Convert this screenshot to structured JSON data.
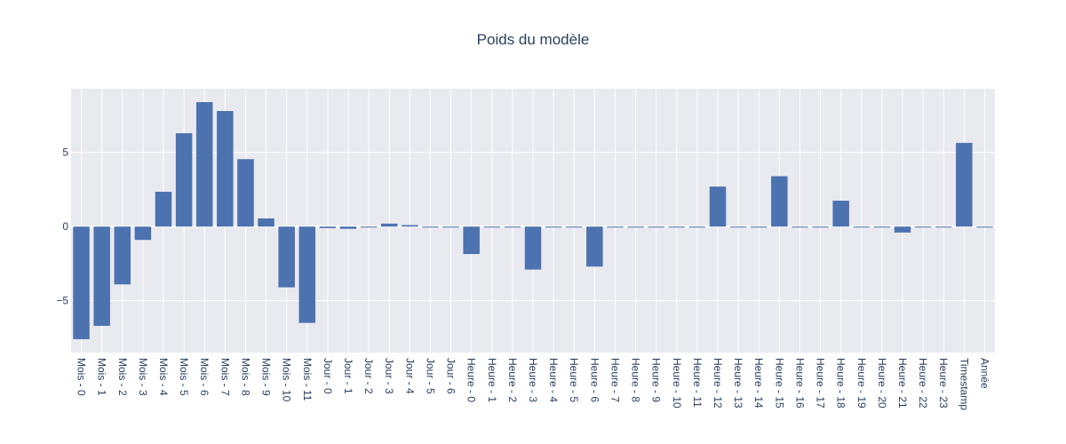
{
  "chart_data": {
    "type": "bar",
    "title": "Poids du modèle",
    "xlabel": "",
    "ylabel": "",
    "ylim": [
      -8.5,
      9.3
    ],
    "yticks": [
      -5,
      0,
      5
    ],
    "grid": true,
    "colors": {
      "bar": "#4c72b0",
      "plot_bg": "#e9e9f0",
      "grid": "#ffffff",
      "text": "#2a3f5f"
    },
    "categories": [
      "Mois - 0",
      "Mois - 1",
      "Mois - 2",
      "Mois - 3",
      "Mois - 4",
      "Mois - 5",
      "Mois - 6",
      "Mois - 7",
      "Mois - 8",
      "Mois - 9",
      "Mois - 10",
      "Mois - 11",
      "Jour - 0",
      "Jour - 1",
      "Jour - 2",
      "Jour - 3",
      "Jour - 4",
      "Jour - 5",
      "Jour - 6",
      "Heure - 0",
      "Heure - 1",
      "Heure - 2",
      "Heure - 3",
      "Heure - 4",
      "Heure - 5",
      "Heure - 6",
      "Heure - 7",
      "Heure - 8",
      "Heure - 9",
      "Heure - 10",
      "Heure - 11",
      "Heure - 12",
      "Heure - 13",
      "Heure - 14",
      "Heure - 15",
      "Heure - 16",
      "Heure - 17",
      "Heure - 18",
      "Heure - 19",
      "Heure - 20",
      "Heure - 21",
      "Heure - 22",
      "Heure - 23",
      "Timestamp",
      "Année"
    ],
    "values": [
      -7.6,
      -6.7,
      -3.9,
      -0.9,
      2.35,
      6.3,
      8.4,
      7.8,
      4.55,
      0.55,
      -4.1,
      -6.5,
      -0.1,
      -0.15,
      0.0,
      0.2,
      0.1,
      0.0,
      -0.05,
      -1.85,
      0.0,
      0.0,
      -2.9,
      0.0,
      0.0,
      -2.7,
      0.0,
      0.0,
      -0.05,
      0.0,
      0.0,
      2.7,
      0.0,
      0.0,
      3.4,
      0.0,
      0.0,
      1.75,
      0.0,
      0.0,
      -0.4,
      0.0,
      0.0,
      5.65,
      -0.05
    ]
  }
}
